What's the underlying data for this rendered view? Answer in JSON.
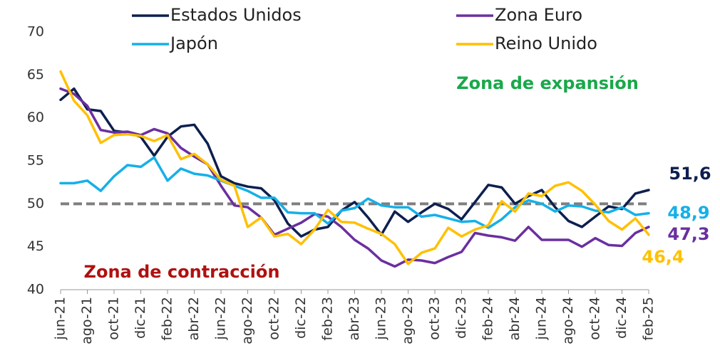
{
  "chart_data": {
    "type": "line",
    "categories": [
      "jun-21",
      null,
      "ago-21",
      null,
      "oct-21",
      null,
      "dic-21",
      null,
      "feb-22",
      null,
      "abr-22",
      null,
      "jun-22",
      null,
      "ago-22",
      null,
      "oct-22",
      null,
      "dic-22",
      null,
      "feb-23",
      null,
      "abr-23",
      null,
      "jun-23",
      null,
      "ago-23",
      null,
      "oct-23",
      null,
      "dic-23",
      null,
      "feb-24",
      null,
      "abr-24",
      null,
      "jun-24",
      null,
      "ago-24",
      null,
      "oct-24",
      null,
      "dic-24",
      null,
      "feb-25"
    ],
    "series": [
      {
        "name": "Estados Unidos",
        "color": "#0d1f4f",
        "values": [
          62.1,
          63.4,
          61.0,
          60.8,
          58.5,
          58.3,
          57.8,
          55.6,
          57.8,
          59.0,
          59.2,
          57.0,
          53.2,
          52.4,
          52.0,
          51.8,
          50.4,
          47.7,
          46.2,
          47.0,
          47.3,
          49.2,
          50.2,
          48.4,
          46.4,
          49.1,
          47.9,
          49.0,
          50.0,
          49.4,
          48.2,
          50.2,
          52.2,
          51.9,
          50.0,
          50.9,
          51.6,
          49.6,
          48.0,
          47.3,
          48.5,
          49.7,
          49.4,
          51.2,
          51.6
        ],
        "value_labels": [
          null,
          null,
          null,
          null,
          null,
          null,
          null,
          null,
          null,
          null,
          null,
          null,
          null,
          null,
          null,
          null,
          null,
          null,
          null,
          null,
          null,
          null,
          null,
          null,
          null,
          null,
          null,
          null,
          null,
          null,
          null,
          null,
          null,
          null,
          null,
          null,
          null,
          null,
          null,
          null,
          null,
          null,
          null,
          null,
          "51,6"
        ]
      },
      {
        "name": "Zona Euro",
        "color": "#6a2fa0",
        "values": [
          63.4,
          62.8,
          61.4,
          58.6,
          58.3,
          58.4,
          58.0,
          58.7,
          58.2,
          56.5,
          55.5,
          54.6,
          52.1,
          49.8,
          49.6,
          48.4,
          46.4,
          47.1,
          47.8,
          48.8,
          48.5,
          47.3,
          45.8,
          44.8,
          43.4,
          42.7,
          43.5,
          43.4,
          43.1,
          43.8,
          44.4,
          46.6,
          46.3,
          46.1,
          45.7,
          47.3,
          45.8,
          45.8,
          45.8,
          45.0,
          46.0,
          45.2,
          45.1,
          46.6,
          47.3
        ],
        "value_labels": [
          null,
          null,
          null,
          null,
          null,
          null,
          null,
          null,
          null,
          null,
          null,
          null,
          null,
          null,
          null,
          null,
          null,
          null,
          null,
          null,
          null,
          null,
          null,
          null,
          null,
          null,
          null,
          null,
          null,
          null,
          null,
          null,
          null,
          null,
          null,
          null,
          null,
          null,
          null,
          null,
          null,
          null,
          null,
          null,
          "47,3"
        ]
      },
      {
        "name": "Japón",
        "color": "#15b0e8",
        "values": [
          52.4,
          52.4,
          52.7,
          51.5,
          53.2,
          54.5,
          54.3,
          55.4,
          52.7,
          54.1,
          53.5,
          53.3,
          52.7,
          52.1,
          51.5,
          50.7,
          50.7,
          49.0,
          48.9,
          48.9,
          47.7,
          49.2,
          49.5,
          50.6,
          49.8,
          49.6,
          49.6,
          48.5,
          48.7,
          48.3,
          47.9,
          48.0,
          47.2,
          48.2,
          49.6,
          50.4,
          50.0,
          49.1,
          49.8,
          49.7,
          49.2,
          49.0,
          49.6,
          48.7,
          48.9
        ],
        "value_labels": [
          null,
          null,
          null,
          null,
          null,
          null,
          null,
          null,
          null,
          null,
          null,
          null,
          null,
          null,
          null,
          null,
          null,
          null,
          null,
          null,
          null,
          null,
          null,
          null,
          null,
          null,
          null,
          null,
          null,
          null,
          null,
          null,
          null,
          null,
          null,
          null,
          null,
          null,
          null,
          null,
          null,
          null,
          null,
          null,
          "48,9"
        ]
      },
      {
        "name": "Reino Unido",
        "color": "#ffc000",
        "values": [
          65.4,
          62.0,
          60.3,
          57.1,
          58.0,
          58.1,
          57.9,
          57.3,
          58.0,
          55.2,
          55.8,
          54.6,
          52.8,
          52.1,
          47.3,
          48.4,
          46.2,
          46.5,
          45.3,
          47.0,
          49.3,
          47.9,
          47.8,
          47.1,
          46.5,
          45.3,
          43.0,
          44.3,
          44.8,
          47.2,
          46.2,
          47.0,
          47.5,
          50.3,
          49.1,
          51.2,
          50.9,
          52.1,
          52.5,
          51.5,
          49.9,
          48.0,
          47.0,
          48.3,
          46.4
        ],
        "value_labels": [
          null,
          null,
          null,
          null,
          null,
          null,
          null,
          null,
          null,
          null,
          null,
          null,
          null,
          null,
          null,
          null,
          null,
          null,
          null,
          null,
          null,
          null,
          null,
          null,
          null,
          null,
          null,
          null,
          null,
          null,
          null,
          null,
          null,
          null,
          null,
          null,
          null,
          null,
          null,
          null,
          null,
          null,
          null,
          null,
          "46,4"
        ]
      }
    ],
    "ylim": [
      40,
      70
    ],
    "yticks": [
      40,
      45,
      50,
      55,
      60,
      65,
      70
    ],
    "reference_line": 50,
    "annotations": [
      {
        "text": "Zona de expansión",
        "color": "#1aa84b"
      },
      {
        "text": "Zona de contracción",
        "color": "#b01010"
      }
    ],
    "grid": false
  }
}
